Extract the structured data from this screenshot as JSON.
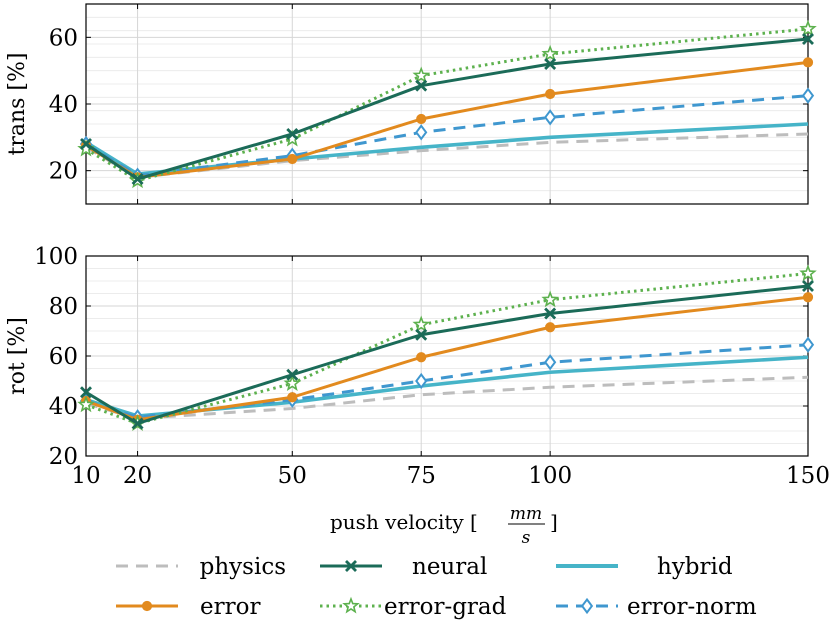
{
  "chart_data": [
    {
      "type": "line",
      "ylabel": "trans [%]",
      "xlabel": "",
      "x": [
        10,
        20,
        50,
        75,
        100,
        150
      ],
      "xlim": [
        10,
        150
      ],
      "ylim": [
        10,
        70
      ],
      "yticks": [
        20,
        40,
        60
      ],
      "grid": true,
      "series": [
        {
          "name": "physics",
          "values": [
            27,
            18,
            23,
            26,
            28.5,
            31
          ]
        },
        {
          "name": "neural",
          "values": [
            28,
            17.5,
            31,
            45.5,
            52,
            59.5
          ]
        },
        {
          "name": "hybrid",
          "values": [
            28.5,
            19,
            23.5,
            27,
            30,
            34
          ]
        },
        {
          "name": "error",
          "values": [
            27.5,
            18,
            23.5,
            35.5,
            43,
            52.5
          ]
        },
        {
          "name": "error-grad",
          "values": [
            26.5,
            17,
            29.5,
            48.5,
            55,
            62.5
          ]
        },
        {
          "name": "error-norm",
          "values": [
            28,
            18.5,
            24.5,
            31.5,
            36,
            42.5
          ]
        }
      ]
    },
    {
      "type": "line",
      "ylabel": "rot [%]",
      "xlabel": "push velocity [mm/s]",
      "xlabel_text": "push velocity [",
      "xlabel_num": "mm",
      "xlabel_den": "s",
      "xlabel_close": "]",
      "x": [
        10,
        20,
        50,
        75,
        100,
        150
      ],
      "xticks": [
        "10",
        "20",
        "50",
        "75",
        "100",
        "150"
      ],
      "xlim": [
        10,
        150
      ],
      "ylim": [
        20,
        100
      ],
      "yticks": [
        20,
        40,
        60,
        80,
        100
      ],
      "grid": true,
      "series": [
        {
          "name": "physics",
          "values": [
            41,
            35,
            39,
            44.5,
            47.5,
            51.5
          ]
        },
        {
          "name": "neural",
          "values": [
            45.5,
            33,
            52.5,
            68.5,
            77,
            88
          ]
        },
        {
          "name": "hybrid",
          "values": [
            42.5,
            36,
            41.5,
            48,
            53.5,
            59.5
          ]
        },
        {
          "name": "error",
          "values": [
            42,
            34.5,
            43.5,
            59.5,
            71.5,
            83.5
          ]
        },
        {
          "name": "error-grad",
          "values": [
            40.5,
            33,
            49,
            72.5,
            82.5,
            93
          ]
        },
        {
          "name": "error-norm",
          "values": [
            42,
            35.5,
            42.5,
            50,
            57.5,
            64.5
          ]
        }
      ]
    }
  ],
  "legend": {
    "placement": "bottom",
    "entries": [
      {
        "name": "physics",
        "color": "#bdbdbd",
        "dash": "dashed",
        "marker": "none"
      },
      {
        "name": "neural",
        "color": "#1b6b58",
        "dash": "solid",
        "marker": "cross"
      },
      {
        "name": "hybrid",
        "color": "#46b4c8",
        "dash": "solid",
        "marker": "none"
      },
      {
        "name": "error",
        "color": "#e28a1e",
        "dash": "solid",
        "marker": "circle"
      },
      {
        "name": "error-grad",
        "color": "#5db14e",
        "dash": "dotted",
        "marker": "star"
      },
      {
        "name": "error-norm",
        "color": "#3f97cf",
        "dash": "dashed",
        "marker": "diamond"
      }
    ]
  }
}
